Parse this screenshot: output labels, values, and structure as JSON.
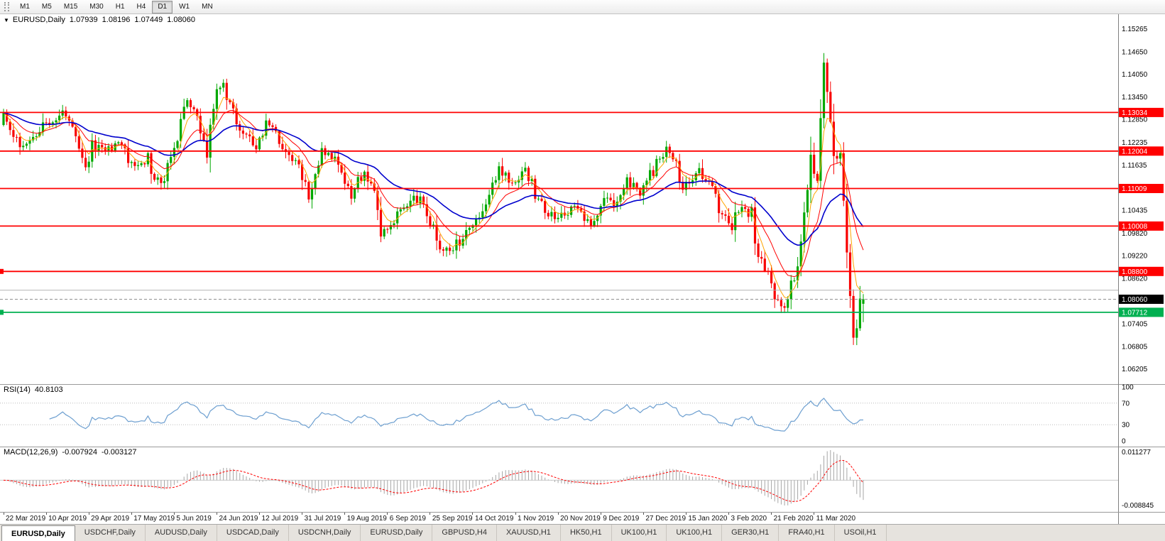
{
  "colors": {
    "bull": "#00A800",
    "bear": "#F80000",
    "ma_fast": "#FFA500",
    "ma_mid": "#FF0000",
    "ma_slow": "#0000CD",
    "hline_red": "#FF0000",
    "hline_green": "#00B050",
    "current_price_badge": "#000000",
    "rsi_line": "#6D9FD0",
    "macd_histogram": "#A6A6A6",
    "macd_signal": "#FF0000",
    "level_dotted": "#BBBBBB",
    "gray_level_line": "#B4B4B4"
  },
  "toolbar": {
    "timeframes": [
      {
        "label": "M1",
        "active": false
      },
      {
        "label": "M5",
        "active": false
      },
      {
        "label": "M15",
        "active": false
      },
      {
        "label": "M30",
        "active": false
      },
      {
        "label": "H1",
        "active": false
      },
      {
        "label": "H4",
        "active": false
      },
      {
        "label": "D1",
        "active": true
      },
      {
        "label": "W1",
        "active": false
      },
      {
        "label": "MN",
        "active": false
      }
    ]
  },
  "main_chart": {
    "collapse_arrow": "▼",
    "header": {
      "symbol_period": "EURUSD,Daily",
      "open": "1.07939",
      "high": "1.08196",
      "low": "1.07449",
      "close": "1.08060"
    },
    "axis_ticks": [
      1.15265,
      1.1465,
      1.1405,
      1.1345,
      1.1285,
      1.12235,
      1.11635,
      1.10435,
      1.0982,
      1.0922,
      1.0862,
      1.07405,
      1.06805,
      1.06205
    ],
    "hlines": [
      {
        "price": 1.13034,
        "label": "1.13034",
        "type": "red"
      },
      {
        "price": 1.12004,
        "label": "1.12004",
        "type": "red"
      },
      {
        "price": 1.11009,
        "label": "1.11009",
        "type": "red"
      },
      {
        "price": 1.10008,
        "label": "1.10008",
        "type": "red"
      },
      {
        "price": 1.088,
        "label": "1.08800",
        "type": "red"
      },
      {
        "price": 1.07712,
        "label": "1.07712",
        "type": "green"
      }
    ],
    "gray_level": 1.083,
    "current_price": {
      "price": 1.0806,
      "label": "1.08060"
    }
  },
  "rsi_panel": {
    "name": "RSI(14)",
    "value": "40.8103",
    "period": 14,
    "axis_labels": [
      100,
      70,
      30,
      0
    ],
    "upper_level": 70,
    "lower_level": 30
  },
  "macd_panel": {
    "name": "MACD(12,26,9)",
    "value_main": "-0.007924",
    "value_signal": "-0.003127",
    "axis_top_label": "0.011277",
    "axis_bottom_label": "-0.008845"
  },
  "date_axis": [
    "22 Mar 2019",
    "10 Apr 2019",
    "29 Apr 2019",
    "17 May 2019",
    "5 Jun 2019",
    "24 Jun 2019",
    "12 Jul 2019",
    "31 Jul 2019",
    "19 Aug 2019",
    "6 Sep 2019",
    "25 Sep 2019",
    "14 Oct 2019",
    "1 Nov 2019",
    "20 Nov 2019",
    "9 Dec 2019",
    "27 Dec 2019",
    "15 Jan 2020",
    "3 Feb 2020",
    "21 Feb 2020",
    "11 Mar 2020"
  ],
  "tabs": [
    {
      "label": "EURUSD,Daily",
      "active": true
    },
    {
      "label": "USDCHF,Daily",
      "active": false
    },
    {
      "label": "AUDUSD,Daily",
      "active": false
    },
    {
      "label": "USDCAD,Daily",
      "active": false
    },
    {
      "label": "USDCNH,Daily",
      "active": false
    },
    {
      "label": "EURUSD,Daily",
      "active": false
    },
    {
      "label": "GBPUSD,H4",
      "active": false
    },
    {
      "label": "XAUUSD,H1",
      "active": false
    },
    {
      "label": "HK50,H1",
      "active": false
    },
    {
      "label": "UK100,H1",
      "active": false
    },
    {
      "label": "UK100,H1",
      "active": false
    },
    {
      "label": "GER30,H1",
      "active": false
    },
    {
      "label": "FRA40,H1",
      "active": false
    },
    {
      "label": "USOil,H1",
      "active": false
    }
  ],
  "chart_data": {
    "type": "candlestick",
    "symbol": "EURUSD",
    "timeframe": "Daily",
    "title": "EURUSD,Daily 1.07939 1.08196 1.07449 1.08060",
    "ohlc_current": {
      "open": 1.07939,
      "high": 1.08196,
      "low": 1.07449,
      "close": 1.0806
    },
    "num_candles": 263,
    "price_axis_range": [
      1.06205,
      1.15265
    ],
    "x_tick_labels": [
      "22 Mar 2019",
      "10 Apr 2019",
      "29 Apr 2019",
      "17 May 2019",
      "5 Jun 2019",
      "24 Jun 2019",
      "12 Jul 2019",
      "31 Jul 2019",
      "19 Aug 2019",
      "6 Sep 2019",
      "25 Sep 2019",
      "14 Oct 2019",
      "1 Nov 2019",
      "20 Nov 2019",
      "9 Dec 2019",
      "27 Dec 2019",
      "15 Jan 2020",
      "3 Feb 2020",
      "21 Feb 2020",
      "11 Mar 2020"
    ],
    "horizontal_levels": {
      "resistance_red": [
        1.13034,
        1.12004,
        1.11009,
        1.10008,
        1.088
      ],
      "support_green": [
        1.07712
      ],
      "current_price": 1.0806
    },
    "close_anchors_approx": [
      [
        0,
        1.1302
      ],
      [
        4,
        1.1224
      ],
      [
        8,
        1.1218
      ],
      [
        13,
        1.1274
      ],
      [
        18,
        1.1297
      ],
      [
        21,
        1.1262
      ],
      [
        25,
        1.115
      ],
      [
        27,
        1.1215
      ],
      [
        31,
        1.1197
      ],
      [
        35,
        1.122
      ],
      [
        40,
        1.1158
      ],
      [
        44,
        1.1182
      ],
      [
        46,
        1.112
      ],
      [
        49,
        1.1131
      ],
      [
        53,
        1.1222
      ],
      [
        55,
        1.1334
      ],
      [
        58,
        1.1308
      ],
      [
        62,
        1.1193
      ],
      [
        65,
        1.137
      ],
      [
        67,
        1.1367
      ],
      [
        71,
        1.1285
      ],
      [
        77,
        1.1208
      ],
      [
        80,
        1.127
      ],
      [
        83,
        1.1247
      ],
      [
        86,
        1.1209
      ],
      [
        90,
        1.1148
      ],
      [
        93,
        1.1075
      ],
      [
        94,
        1.1084
      ],
      [
        97,
        1.12
      ],
      [
        100,
        1.1182
      ],
      [
        102,
        1.117
      ],
      [
        106,
        1.1078
      ],
      [
        110,
        1.1145
      ],
      [
        113,
        1.11
      ],
      [
        115,
        1.0989
      ],
      [
        120,
        1.1028
      ],
      [
        125,
        1.1073
      ],
      [
        128,
        1.1068
      ],
      [
        130,
        1.1017
      ],
      [
        133,
        1.0941
      ],
      [
        137,
        1.0932
      ],
      [
        139,
        1.0965
      ],
      [
        145,
        1.104
      ],
      [
        148,
        1.1073
      ],
      [
        151,
        1.115
      ],
      [
        155,
        1.1112
      ],
      [
        159,
        1.1152
      ],
      [
        164,
        1.105
      ],
      [
        169,
        1.1022
      ],
      [
        174,
        1.1058
      ],
      [
        177,
        1.101
      ],
      [
        180,
        1.1017
      ],
      [
        183,
        1.108
      ],
      [
        186,
        1.1064
      ],
      [
        190,
        1.1121
      ],
      [
        194,
        1.109
      ],
      [
        200,
        1.1176
      ],
      [
        202,
        1.1212
      ],
      [
        205,
        1.116
      ],
      [
        207,
        1.1103
      ],
      [
        212,
        1.1149
      ],
      [
        216,
        1.1093
      ],
      [
        219,
        1.1024
      ],
      [
        222,
        1.1002
      ],
      [
        225,
        1.106
      ],
      [
        228,
        1.1032
      ],
      [
        230,
        1.0911
      ],
      [
        233,
        1.0865
      ],
      [
        236,
        1.0798
      ],
      [
        238,
        1.0785
      ],
      [
        240,
        1.0853
      ],
      [
        242,
        1.0885
      ],
      [
        244,
        1.1026
      ],
      [
        246,
        1.1174
      ],
      [
        248,
        1.1136
      ],
      [
        250,
        1.1446
      ],
      [
        252,
        1.1271
      ],
      [
        253,
        1.1184
      ],
      [
        255,
        1.1183
      ],
      [
        257,
        1.0916
      ],
      [
        259,
        1.0695
      ],
      [
        260,
        1.0727
      ],
      [
        261,
        1.0788
      ],
      [
        262,
        1.0806
      ]
    ],
    "indicators": [
      {
        "name": "RSI",
        "period": 14,
        "current": 40.8103,
        "range": [
          0,
          100
        ],
        "levels": [
          30,
          70
        ]
      },
      {
        "name": "MACD",
        "fast": 12,
        "slow": 26,
        "signal": 9,
        "current_macd": -0.007924,
        "current_signal": -0.003127,
        "axis_max": 0.011277,
        "axis_min": -0.008845
      }
    ]
  }
}
